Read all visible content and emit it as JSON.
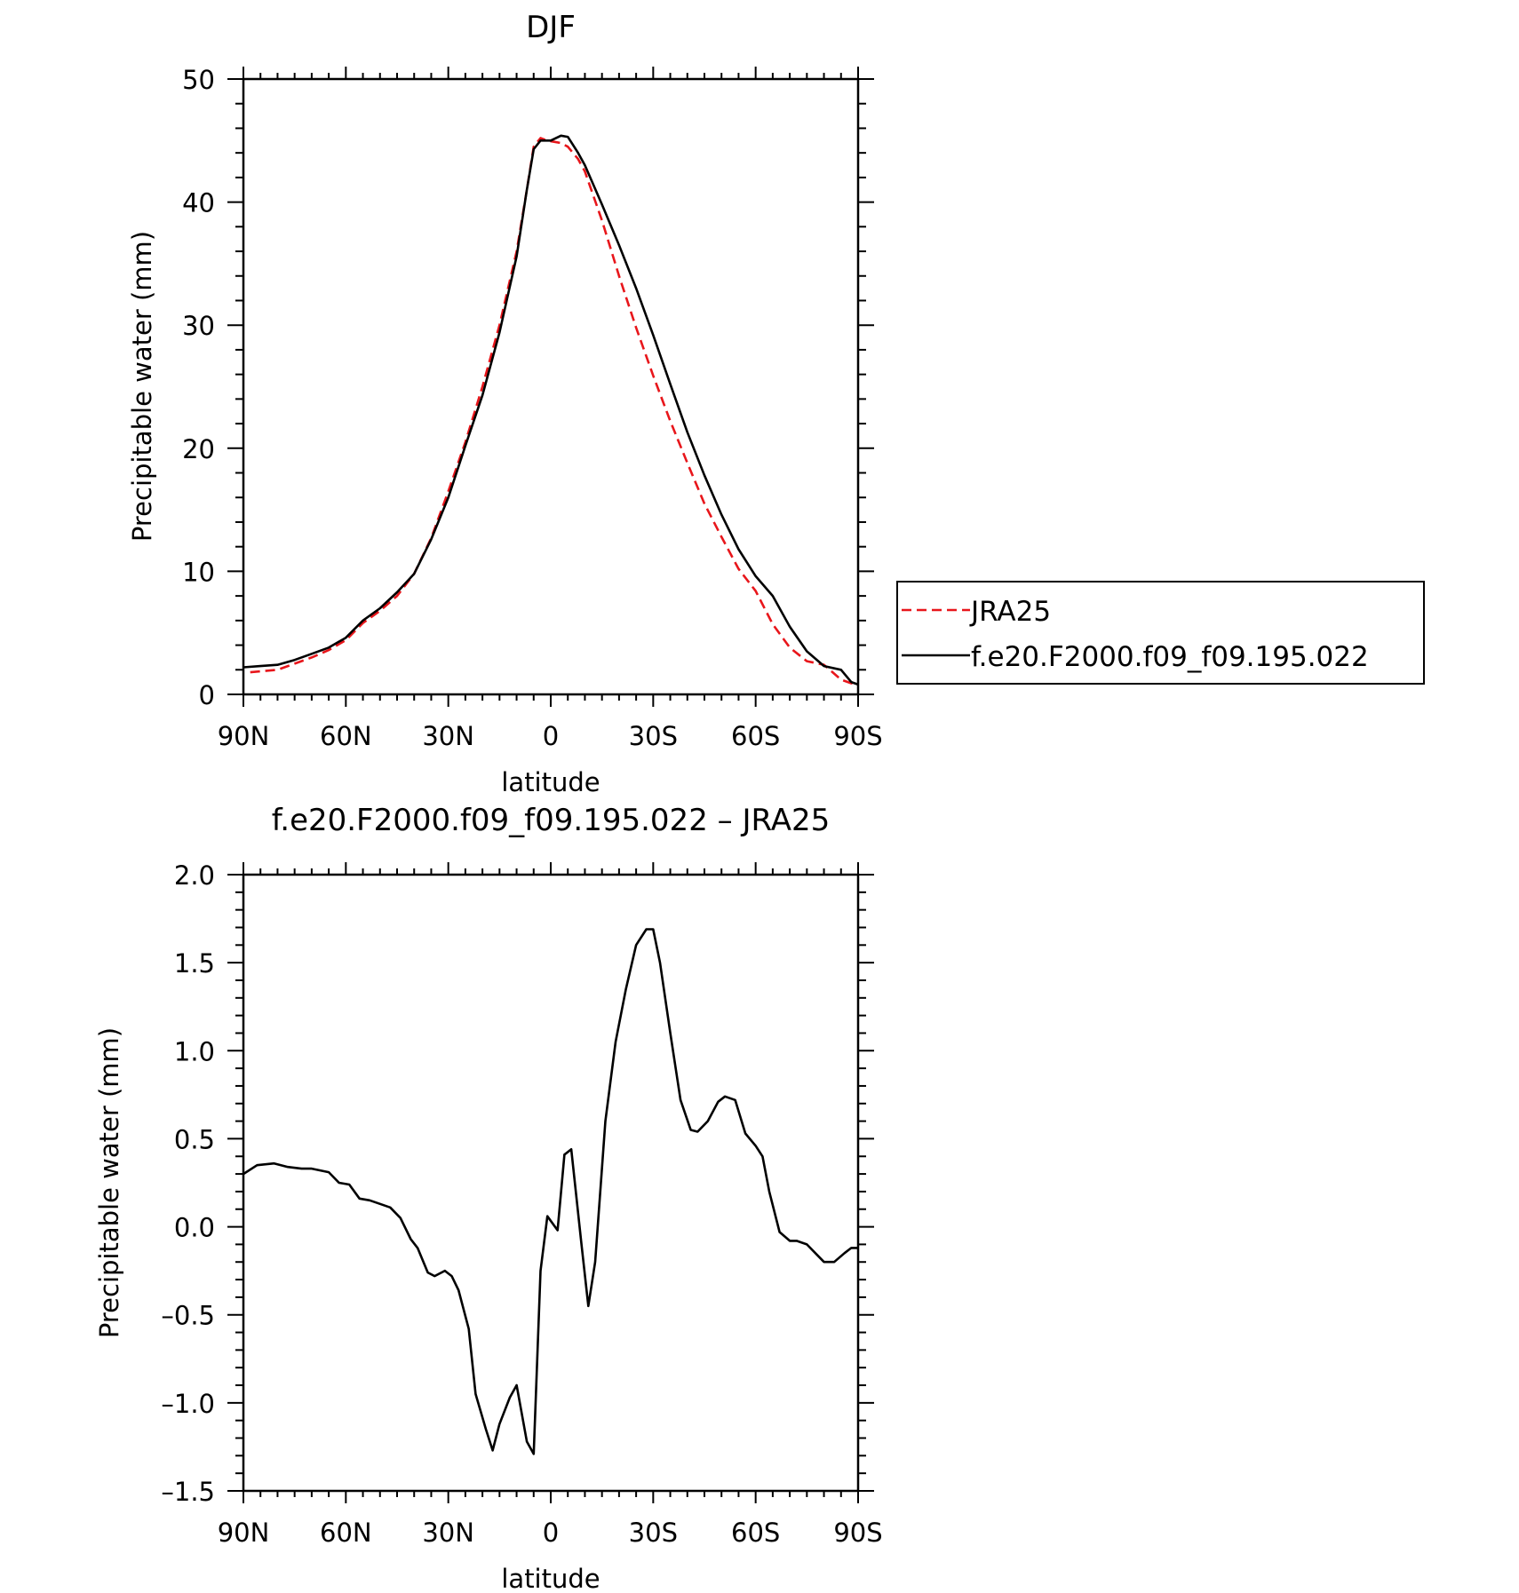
{
  "colors": {
    "jra": "#e8161b",
    "model": "#000000"
  },
  "chart_data": [
    {
      "type": "line",
      "title": "DJF",
      "xlabel": "latitude",
      "ylabel": "Precipitable water (mm)",
      "xlim": [
        -90,
        90
      ],
      "ylim": [
        0,
        50
      ],
      "x_ticks": [
        {
          "value": -90,
          "label": "90N"
        },
        {
          "value": -60,
          "label": "60N"
        },
        {
          "value": -30,
          "label": "30N"
        },
        {
          "value": 0,
          "label": "0"
        },
        {
          "value": 30,
          "label": "30S"
        },
        {
          "value": 60,
          "label": "60S"
        },
        {
          "value": 90,
          "label": "90S"
        }
      ],
      "y_ticks": [
        {
          "value": 0,
          "label": "0"
        },
        {
          "value": 10,
          "label": "10"
        },
        {
          "value": 20,
          "label": "20"
        },
        {
          "value": 30,
          "label": "30"
        },
        {
          "value": 40,
          "label": "40"
        },
        {
          "value": 50,
          "label": "50"
        }
      ],
      "legend": "outside-right",
      "series": [
        {
          "name": "JRA25",
          "style": "dashed",
          "x": [
            -88,
            -80,
            -75,
            -70,
            -65,
            -60,
            -55,
            -50,
            -45,
            -40,
            -35,
            -30,
            -25,
            -20,
            -15,
            -10,
            -7,
            -5,
            -3,
            -1,
            1,
            3,
            5,
            8,
            10,
            15,
            20,
            25,
            30,
            35,
            40,
            45,
            50,
            55,
            60,
            65,
            70,
            75,
            80,
            85,
            88,
            90
          ],
          "values": [
            1.8,
            2.0,
            2.5,
            3.0,
            3.6,
            4.4,
            5.8,
            6.8,
            8.0,
            9.8,
            12.7,
            16.5,
            20.5,
            25.0,
            30.0,
            36.0,
            41.0,
            44.5,
            45.2,
            45.0,
            44.9,
            44.8,
            44.5,
            43.5,
            42.5,
            38.5,
            34.0,
            29.8,
            25.9,
            22.2,
            18.8,
            15.5,
            12.8,
            10.2,
            8.4,
            5.7,
            3.8,
            2.7,
            2.4,
            1.2,
            0.9,
            0.8
          ]
        },
        {
          "name": "f.e20.F2000.f09_f09.195.022",
          "style": "solid",
          "x": [
            -90,
            -85,
            -80,
            -75,
            -70,
            -65,
            -60,
            -55,
            -50,
            -45,
            -40,
            -35,
            -30,
            -25,
            -20,
            -15,
            -10,
            -7,
            -5,
            -3,
            0,
            3,
            5,
            8,
            10,
            15,
            20,
            25,
            30,
            35,
            40,
            45,
            50,
            55,
            60,
            65,
            70,
            75,
            80,
            85,
            88,
            90
          ],
          "values": [
            2.2,
            2.3,
            2.4,
            2.8,
            3.3,
            3.8,
            4.6,
            6.0,
            7.0,
            8.3,
            9.8,
            12.6,
            16.0,
            20.2,
            24.3,
            29.4,
            35.6,
            41.0,
            44.3,
            45.0,
            45.0,
            45.4,
            45.3,
            44.0,
            43.0,
            39.8,
            36.5,
            33.0,
            29.2,
            25.2,
            21.3,
            17.8,
            14.6,
            11.8,
            9.6,
            8.0,
            5.5,
            3.5,
            2.3,
            2.0,
            1.0,
            0.8
          ]
        }
      ]
    },
    {
      "type": "line",
      "title": "f.e20.F2000.f09_f09.195.022 – JRA25",
      "xlabel": "latitude",
      "ylabel": "Precipitable water (mm)",
      "xlim": [
        -90,
        90
      ],
      "ylim": [
        -1.5,
        2.0
      ],
      "x_ticks": [
        {
          "value": -90,
          "label": "90N"
        },
        {
          "value": -60,
          "label": "60N"
        },
        {
          "value": -30,
          "label": "30N"
        },
        {
          "value": 0,
          "label": "0"
        },
        {
          "value": 30,
          "label": "30S"
        },
        {
          "value": 60,
          "label": "60S"
        },
        {
          "value": 90,
          "label": "90S"
        }
      ],
      "y_ticks": [
        {
          "value": -1.5,
          "label": "–1.5"
        },
        {
          "value": -1.0,
          "label": "–1.0"
        },
        {
          "value": -0.5,
          "label": "–0.5"
        },
        {
          "value": 0.0,
          "label": "0.0"
        },
        {
          "value": 0.5,
          "label": "0.5"
        },
        {
          "value": 1.0,
          "label": "1.0"
        },
        {
          "value": 1.5,
          "label": "1.5"
        },
        {
          "value": 2.0,
          "label": "2.0"
        }
      ],
      "series": [
        {
          "x": [
            -90,
            -86,
            -81,
            -77,
            -73,
            -70,
            -65,
            -62,
            -59,
            -56,
            -53,
            -50,
            -47,
            -44,
            -41,
            -39,
            -36,
            -34,
            -31,
            -29,
            -27,
            -24,
            -22,
            -19,
            -17,
            -15,
            -12,
            -10,
            -7,
            -5,
            -3,
            -1,
            2,
            4,
            6,
            9,
            11,
            13,
            16,
            19,
            22,
            25,
            28,
            30,
            32,
            35,
            38,
            41,
            43,
            46,
            49,
            51,
            54,
            57,
            60,
            62,
            64,
            67,
            70,
            72,
            75,
            78,
            80,
            83,
            86,
            88,
            90
          ],
          "values": [
            0.3,
            0.35,
            0.36,
            0.34,
            0.33,
            0.33,
            0.31,
            0.25,
            0.24,
            0.16,
            0.15,
            0.13,
            0.11,
            0.05,
            -0.07,
            -0.12,
            -0.26,
            -0.28,
            -0.25,
            -0.28,
            -0.36,
            -0.58,
            -0.95,
            -1.15,
            -1.27,
            -1.12,
            -0.97,
            -0.9,
            -1.22,
            -1.29,
            -0.25,
            0.06,
            -0.02,
            0.41,
            0.44,
            -0.1,
            -0.45,
            -0.2,
            0.6,
            1.05,
            1.35,
            1.6,
            1.69,
            1.69,
            1.5,
            1.1,
            0.72,
            0.55,
            0.54,
            0.6,
            0.71,
            0.74,
            0.72,
            0.53,
            0.46,
            0.4,
            0.2,
            -0.03,
            -0.08,
            -0.08,
            -0.1,
            -0.16,
            -0.2,
            -0.2,
            -0.15,
            -0.12,
            -0.12
          ]
        }
      ]
    }
  ]
}
